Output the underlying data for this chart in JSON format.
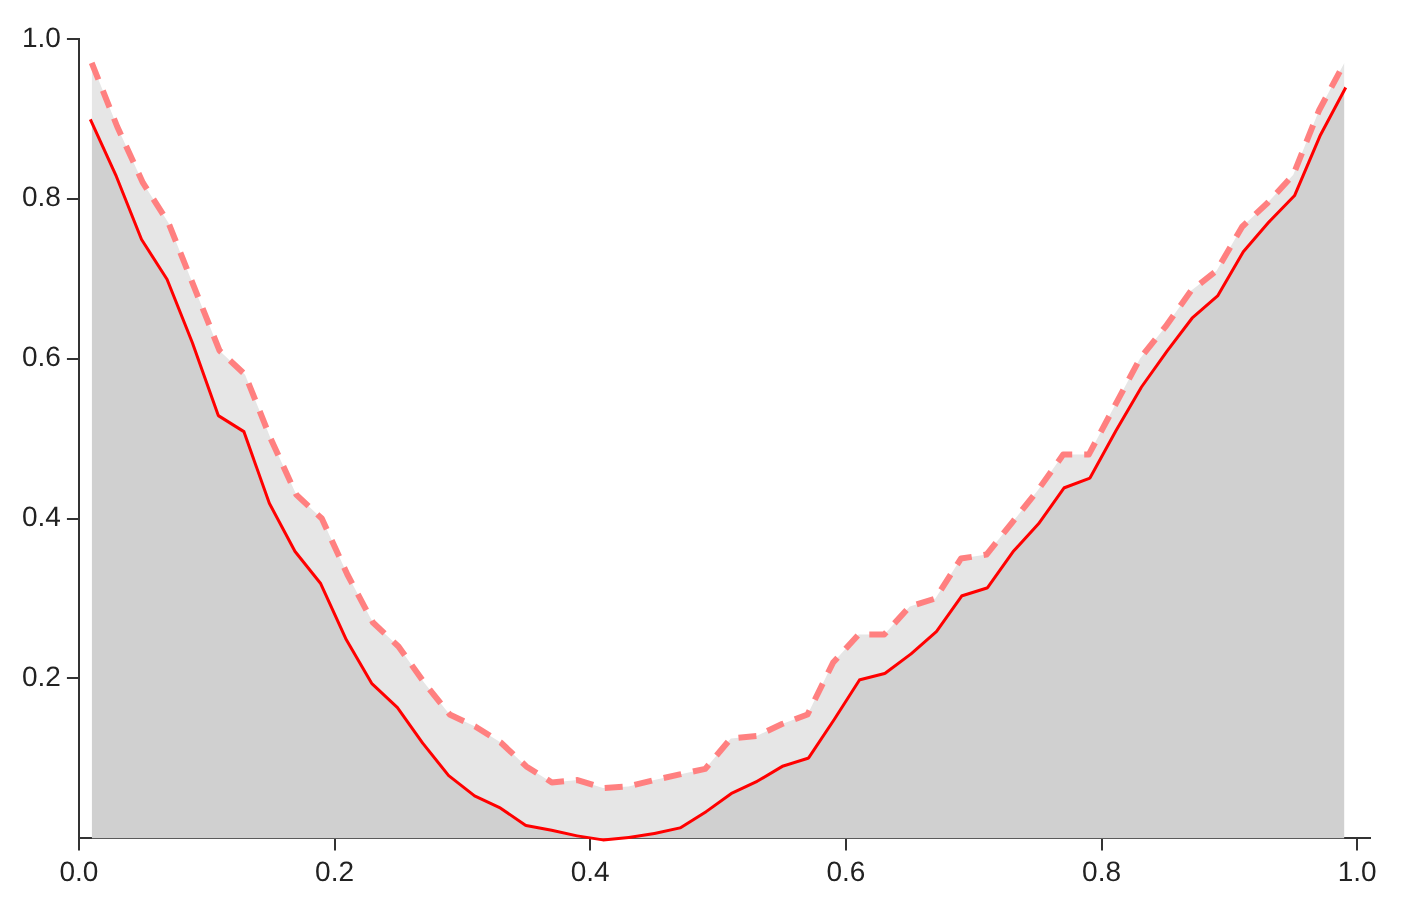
{
  "chart_data": {
    "type": "area",
    "x": [
      0.01,
      0.03,
      0.05,
      0.07,
      0.09,
      0.11,
      0.13,
      0.15,
      0.17,
      0.19,
      0.21,
      0.23,
      0.25,
      0.27,
      0.29,
      0.31,
      0.33,
      0.35,
      0.37,
      0.39,
      0.41,
      0.43,
      0.45,
      0.47,
      0.49,
      0.51,
      0.53,
      0.55,
      0.57,
      0.59,
      0.61,
      0.63,
      0.65,
      0.67,
      0.69,
      0.71,
      0.73,
      0.75,
      0.77,
      0.79,
      0.81,
      0.83,
      0.85,
      0.87,
      0.89,
      0.91,
      0.93,
      0.95,
      0.97,
      0.99
    ],
    "series": [
      {
        "color": "#ff0000",
        "line_style": "solid",
        "values": [
          0.9,
          0.83,
          0.75,
          0.7,
          0.62,
          0.53,
          0.51,
          0.42,
          0.36,
          0.32,
          0.25,
          0.195,
          0.165,
          0.12,
          0.08,
          0.055,
          0.04,
          0.018,
          0.012,
          0.005,
          0.0,
          0.003,
          0.008,
          0.015,
          0.035,
          0.058,
          0.073,
          0.092,
          0.102,
          0.15,
          0.2,
          0.208,
          0.232,
          0.26,
          0.305,
          0.315,
          0.36,
          0.395,
          0.44,
          0.452,
          0.51,
          0.565,
          0.61,
          0.652,
          0.68,
          0.735,
          0.772,
          0.805,
          0.88,
          0.94
        ]
      },
      {
        "color": "#ff8080",
        "line_style": "dashed",
        "values": [
          0.97,
          0.89,
          0.82,
          0.77,
          0.69,
          0.61,
          0.58,
          0.5,
          0.43,
          0.4,
          0.33,
          0.27,
          0.24,
          0.195,
          0.155,
          0.14,
          0.12,
          0.09,
          0.07,
          0.073,
          0.063,
          0.065,
          0.073,
          0.08,
          0.087,
          0.125,
          0.128,
          0.143,
          0.155,
          0.22,
          0.255,
          0.255,
          0.29,
          0.3,
          0.35,
          0.355,
          0.395,
          0.435,
          0.48,
          0.48,
          0.54,
          0.6,
          0.64,
          0.685,
          0.71,
          0.765,
          0.795,
          0.83,
          0.91,
          0.97
        ]
      }
    ],
    "xlim": [
      0,
      1.01
    ],
    "xticks": [
      {
        "value": 0,
        "label": "0.0"
      },
      0.2,
      0.4,
      0.6,
      0.8,
      {
        "value": 1,
        "label": "1.0"
      }
    ],
    "ylim": [
      0,
      1.0
    ],
    "yticks": [
      0.2,
      0.4,
      0.6,
      0.8,
      {
        "value": 1,
        "label": "1.0"
      }
    ],
    "grid": false,
    "legend": false,
    "marker": "none"
  }
}
